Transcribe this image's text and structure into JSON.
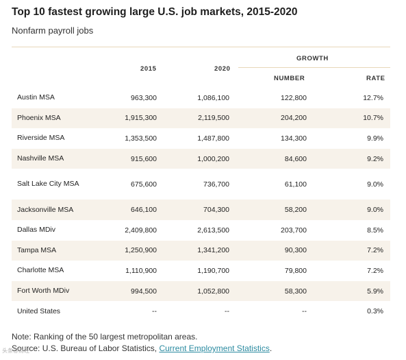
{
  "title": "Top 10 fastest growing large U.S. job markets, 2015-2020",
  "subtitle": "Nonfarm payroll jobs",
  "headers": {
    "growth": "GROWTH",
    "y2015": "2015",
    "y2020": "2020",
    "number": "NUMBER",
    "rate": "RATE"
  },
  "chart_data": {
    "type": "table",
    "title": "Top 10 fastest growing large U.S. job markets, 2015-2020",
    "subtitle": "Nonfarm payroll jobs",
    "columns": [
      "",
      "2015",
      "2020",
      "NUMBER",
      "RATE"
    ],
    "group_header": "GROWTH",
    "rows": [
      {
        "name": "Austin MSA",
        "y2015": "963,300",
        "y2020": "1,086,100",
        "number": "122,800",
        "rate": "12.7%"
      },
      {
        "name": "Phoenix MSA",
        "y2015": "1,915,300",
        "y2020": "2,119,500",
        "number": "204,200",
        "rate": "10.7%"
      },
      {
        "name": "Riverside MSA",
        "y2015": "1,353,500",
        "y2020": "1,487,800",
        "number": "134,300",
        "rate": "9.9%"
      },
      {
        "name": "Nashville MSA",
        "y2015": "915,600",
        "y2020": "1,000,200",
        "number": "84,600",
        "rate": "9.2%"
      },
      {
        "name": "Salt Lake City MSA",
        "y2015": "675,600",
        "y2020": "736,700",
        "number": "61,100",
        "rate": "9.0%"
      },
      {
        "name": "Jacksonville MSA",
        "y2015": "646,100",
        "y2020": "704,300",
        "number": "58,200",
        "rate": "9.0%"
      },
      {
        "name": "Dallas MDiv",
        "y2015": "2,409,800",
        "y2020": "2,613,500",
        "number": "203,700",
        "rate": "8.5%"
      },
      {
        "name": "Tampa MSA",
        "y2015": "1,250,900",
        "y2020": "1,341,200",
        "number": "90,300",
        "rate": "7.2%"
      },
      {
        "name": "Charlotte MSA",
        "y2015": "1,110,900",
        "y2020": "1,190,700",
        "number": "79,800",
        "rate": "7.2%"
      },
      {
        "name": "Fort Worth MDiv",
        "y2015": "994,500",
        "y2020": "1,052,800",
        "number": "58,300",
        "rate": "5.9%"
      },
      {
        "name": "United States",
        "y2015": "--",
        "y2020": "--",
        "number": "--",
        "rate": "0.3%"
      }
    ]
  },
  "note": "Note: Ranking of the 50 largest metropolitan areas.",
  "source_prefix": "Source: U.S. Bureau of Labor Statistics, ",
  "source_link": "Current Employment Statistics",
  "source_suffix": ".",
  "watermark": "头条@财经"
}
